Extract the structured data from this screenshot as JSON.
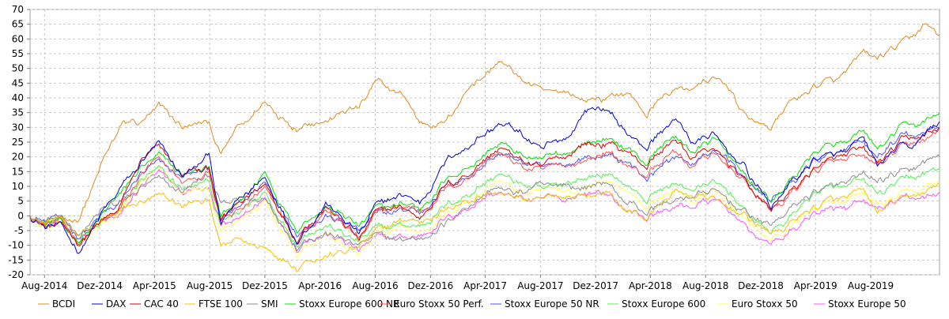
{
  "chart_data": {
    "type": "line",
    "title": "",
    "xlabel": "",
    "ylabel": "",
    "ylim": [
      -20,
      70
    ],
    "yticks": [
      -20,
      -15,
      -10,
      -5,
      0,
      5,
      10,
      15,
      20,
      25,
      30,
      35,
      40,
      45,
      50,
      55,
      60,
      65,
      70
    ],
    "x_range": [
      "2014-06-30",
      "2019-12-31"
    ],
    "x_ticks": [
      {
        "date": "2014-08-01",
        "label": "Aug-2014"
      },
      {
        "date": "2014-12-01",
        "label": "Dez-2014"
      },
      {
        "date": "2015-04-01",
        "label": "Apr-2015"
      },
      {
        "date": "2015-08-01",
        "label": "Aug-2015"
      },
      {
        "date": "2015-12-01",
        "label": "Dez-2015"
      },
      {
        "date": "2016-04-01",
        "label": "Apr-2016"
      },
      {
        "date": "2016-08-01",
        "label": "Aug-2016"
      },
      {
        "date": "2016-12-01",
        "label": "Dez-2016"
      },
      {
        "date": "2017-04-01",
        "label": "Apr-2017"
      },
      {
        "date": "2017-08-01",
        "label": "Aug-2017"
      },
      {
        "date": "2017-12-01",
        "label": "Dez-2017"
      },
      {
        "date": "2018-04-01",
        "label": "Apr-2018"
      },
      {
        "date": "2018-08-01",
        "label": "Aug-2018"
      },
      {
        "date": "2018-12-01",
        "label": "Dez-2018"
      },
      {
        "date": "2019-04-01",
        "label": "Apr-2019"
      },
      {
        "date": "2019-08-01",
        "label": "Aug-2019"
      }
    ],
    "grid": true,
    "legend_position": "bottom",
    "dates": [
      "2014-06-30",
      "2014-08-01",
      "2014-09-01",
      "2014-10-15",
      "2014-12-01",
      "2015-01-15",
      "2015-03-01",
      "2015-04-10",
      "2015-06-01",
      "2015-08-01",
      "2015-08-25",
      "2015-10-01",
      "2015-12-01",
      "2016-02-10",
      "2016-03-01",
      "2016-04-15",
      "2016-06-27",
      "2016-08-01",
      "2016-10-01",
      "2016-11-08",
      "2017-01-02",
      "2017-03-01",
      "2017-05-01",
      "2017-06-01",
      "2017-08-01",
      "2017-10-01",
      "2017-11-06",
      "2017-12-20",
      "2018-02-09",
      "2018-03-23",
      "2018-05-22",
      "2018-07-01",
      "2018-08-15",
      "2018-10-01",
      "2018-10-26",
      "2018-12-24",
      "2019-02-01",
      "2019-04-01",
      "2019-05-31",
      "2019-07-15",
      "2019-08-15",
      "2019-10-01",
      "2019-11-01",
      "2019-11-29",
      "2019-12-31"
    ],
    "series": [
      {
        "name": "BCDI",
        "color": "#e08a1e",
        "values": [
          0,
          -3,
          -2,
          -2,
          16,
          30,
          32,
          37,
          30,
          31,
          20,
          29,
          39,
          30,
          32,
          33,
          37,
          45,
          41,
          32,
          32,
          44,
          52,
          49,
          42,
          42,
          39,
          40,
          42,
          35,
          43,
          43,
          47,
          42,
          34,
          30,
          38,
          44,
          47,
          55,
          53,
          57,
          61,
          65,
          61
        ]
      },
      {
        "name": "DAX",
        "color": "#0000e0",
        "values": [
          0,
          -4,
          -3,
          -12,
          -1,
          8,
          18,
          24,
          13,
          20,
          -3,
          5,
          13,
          -8,
          -4,
          5,
          -7,
          3,
          7,
          4,
          18,
          25,
          31,
          30,
          23,
          27,
          36,
          37,
          28,
          23,
          33,
          25,
          28,
          20,
          16,
          3,
          10,
          20,
          21,
          26,
          16,
          23,
          23,
          27,
          32
        ]
      },
      {
        "name": "CAC 40",
        "color": "#e00000",
        "values": [
          0,
          -4,
          -3,
          -9,
          -3,
          3,
          18,
          23,
          14,
          16,
          -2,
          3,
          11,
          -8,
          -3,
          3,
          -8,
          1,
          3,
          -1,
          10,
          15,
          23,
          20,
          16,
          20,
          25,
          25,
          22,
          17,
          26,
          20,
          23,
          17,
          12,
          2,
          8,
          17,
          19,
          22,
          17,
          24,
          27,
          27,
          30
        ]
      },
      {
        "name": "FTSE 100",
        "color": "#f5c000",
        "values": [
          0,
          -2,
          -1,
          -6,
          -2,
          1,
          4,
          6,
          3,
          5,
          -10,
          -8,
          -10,
          -17,
          -14,
          -13,
          -11,
          -5,
          -1,
          -2,
          2,
          6,
          8,
          6,
          5,
          7,
          7,
          8,
          1,
          -1,
          8,
          7,
          6,
          2,
          0,
          -6,
          -3,
          3,
          6,
          7,
          1,
          5,
          7,
          8,
          11
        ]
      },
      {
        "name": "SMI",
        "color": "#8c8c8c",
        "values": [
          0,
          -2,
          -1,
          -6,
          1,
          5,
          9,
          12,
          8,
          14,
          4,
          5,
          6,
          -10,
          -8,
          -6,
          -10,
          -7,
          -9,
          -8,
          -3,
          4,
          9,
          8,
          9,
          11,
          10,
          12,
          5,
          1,
          5,
          7,
          8,
          4,
          1,
          -3,
          2,
          8,
          10,
          13,
          11,
          14,
          16,
          18,
          20
        ]
      },
      {
        "name": "Stoxx Europe 600 NR",
        "color": "#00e000",
        "values": [
          0,
          -3,
          -2,
          -8,
          -1,
          6,
          16,
          20,
          14,
          16,
          0,
          3,
          15,
          -4,
          -1,
          3,
          -3,
          2,
          4,
          2,
          12,
          17,
          25,
          22,
          18,
          22,
          25,
          26,
          23,
          18,
          28,
          22,
          26,
          20,
          14,
          5,
          11,
          22,
          24,
          27,
          22,
          29,
          31,
          32,
          35
        ]
      },
      {
        "name": "Euro Stoxx 50 Perf.",
        "color": "#ff5050",
        "values": [
          0,
          -3,
          -2,
          -8,
          -3,
          2,
          14,
          19,
          12,
          14,
          -2,
          1,
          10,
          -8,
          -4,
          2,
          -8,
          0,
          3,
          1,
          9,
          14,
          22,
          18,
          15,
          17,
          19,
          22,
          18,
          13,
          22,
          17,
          21,
          16,
          11,
          2,
          7,
          16,
          18,
          20,
          17,
          22,
          25,
          26,
          30
        ]
      },
      {
        "name": "Stoxx Europe 50 NR",
        "color": "#5050ff",
        "values": [
          0,
          -2,
          -1,
          -7,
          0,
          4,
          14,
          18,
          13,
          15,
          -1,
          2,
          12,
          -6,
          -3,
          1,
          -5,
          0,
          2,
          1,
          10,
          14,
          21,
          19,
          16,
          18,
          20,
          21,
          18,
          13,
          20,
          18,
          22,
          18,
          12,
          5,
          10,
          19,
          21,
          24,
          20,
          25,
          27,
          28,
          30
        ]
      },
      {
        "name": "Stoxx Europe 600",
        "color": "#50f050",
        "values": [
          0,
          -3,
          -2,
          -9,
          -3,
          2,
          12,
          16,
          9,
          11,
          -3,
          0,
          8,
          -9,
          -6,
          -3,
          -9,
          -5,
          -3,
          -4,
          3,
          8,
          14,
          12,
          9,
          12,
          13,
          14,
          10,
          6,
          12,
          9,
          11,
          7,
          2,
          -5,
          -1,
          8,
          9,
          11,
          7,
          11,
          13,
          14,
          16
        ]
      },
      {
        "name": "Euro Stoxx 50",
        "color": "#ffff60",
        "values": [
          0,
          -4,
          -3,
          -9,
          -4,
          0,
          11,
          15,
          8,
          9,
          -5,
          -3,
          5,
          -12,
          -9,
          -5,
          -14,
          -7,
          -4,
          -5,
          1,
          6,
          12,
          9,
          7,
          9,
          10,
          12,
          8,
          3,
          9,
          5,
          8,
          4,
          -1,
          -8,
          -4,
          3,
          4,
          6,
          3,
          6,
          8,
          9,
          12
        ]
      },
      {
        "name": "Stoxx Europe 50",
        "color": "#ff50ff",
        "values": [
          0,
          -3,
          -2,
          -8,
          -3,
          0,
          10,
          14,
          8,
          9,
          -4,
          -2,
          6,
          -10,
          -8,
          -6,
          -12,
          -8,
          -6,
          -7,
          -1,
          3,
          8,
          6,
          5,
          6,
          7,
          8,
          3,
          -1,
          4,
          3,
          5,
          1,
          -4,
          -10,
          -6,
          1,
          2,
          4,
          1,
          4,
          6,
          6,
          8
        ]
      }
    ]
  }
}
